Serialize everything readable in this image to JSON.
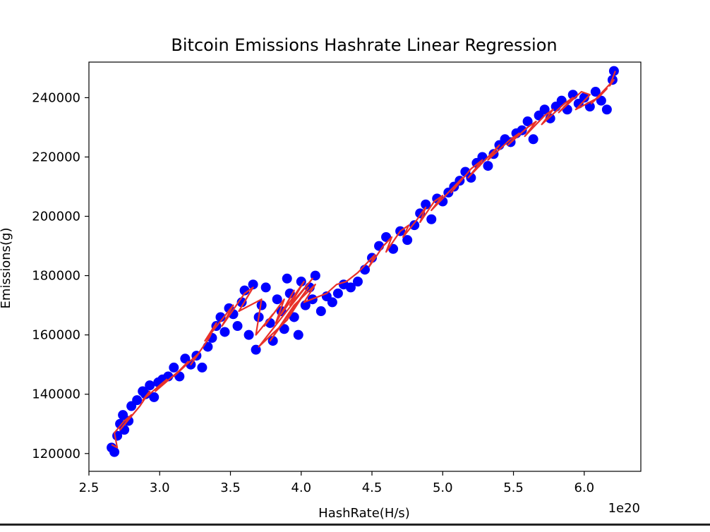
{
  "colors": {
    "points": "#0000ff",
    "line": "#e8312a",
    "axes": "#000000",
    "background": "#ffffff"
  },
  "chart_data": {
    "type": "scatter",
    "title": "Bitcoin Emissions Hashrate Linear Regression",
    "xlabel": "HashRate(H/s)",
    "ylabel": "Emissions(g)",
    "x_offset_label": "1e20",
    "xlim": [
      2.5,
      6.4
    ],
    "ylim": [
      114000,
      252000
    ],
    "x_ticks": [
      2.5,
      3.0,
      3.5,
      4.0,
      4.5,
      5.0,
      5.5,
      6.0
    ],
    "x_tick_labels": [
      "2.5",
      "3.0",
      "3.5",
      "4.0",
      "4.5",
      "5.0",
      "5.5",
      "6.0"
    ],
    "y_ticks": [
      120000,
      140000,
      160000,
      180000,
      200000,
      220000,
      240000
    ],
    "y_tick_labels": [
      "120000",
      "140000",
      "160000",
      "180000",
      "200000",
      "220000",
      "240000"
    ],
    "grid": false,
    "legend": "none",
    "series": [
      {
        "kind": "scatter",
        "color": "#0000ff",
        "x": [
          2.66,
          2.68,
          2.7,
          2.72,
          2.74,
          2.75,
          2.78,
          2.8,
          2.84,
          2.88,
          2.9,
          2.93,
          2.96,
          2.99,
          3.02,
          3.06,
          3.1,
          3.14,
          3.18,
          3.22,
          3.26,
          3.3,
          3.34,
          3.37,
          3.4,
          3.43,
          3.46,
          3.49,
          3.52,
          3.55,
          3.58,
          3.6,
          3.63,
          3.66,
          3.68,
          3.7,
          3.72,
          3.75,
          3.78,
          3.8,
          3.83,
          3.86,
          3.88,
          3.9,
          3.92,
          3.95,
          3.98,
          4.0,
          4.03,
          4.06,
          4.08,
          4.1,
          4.14,
          4.18,
          4.22,
          4.26,
          4.3,
          4.35,
          4.4,
          4.45,
          4.5,
          4.55,
          4.6,
          4.65,
          4.7,
          4.75,
          4.8,
          4.84,
          4.88,
          4.92,
          4.96,
          5.0,
          5.04,
          5.08,
          5.12,
          5.16,
          5.2,
          5.24,
          5.28,
          5.32,
          5.36,
          5.4,
          5.44,
          5.48,
          5.52,
          5.56,
          5.6,
          5.64,
          5.68,
          5.72,
          5.76,
          5.8,
          5.84,
          5.88,
          5.92,
          5.96,
          6.0,
          6.04,
          6.08,
          6.12,
          6.16,
          6.2,
          6.21
        ],
        "y": [
          122000,
          120500,
          126000,
          130000,
          133000,
          128000,
          131000,
          136000,
          138000,
          141000,
          140000,
          143000,
          139000,
          144000,
          145000,
          146000,
          149000,
          146000,
          152000,
          150000,
          153000,
          149000,
          156000,
          159000,
          163000,
          166000,
          161000,
          169000,
          167000,
          163000,
          171000,
          175000,
          160000,
          177000,
          155000,
          166000,
          170000,
          176000,
          164000,
          158000,
          172000,
          168000,
          162000,
          179000,
          174000,
          166000,
          160000,
          178000,
          170000,
          176000,
          172000,
          180000,
          168000,
          173000,
          171000,
          174000,
          177000,
          176000,
          178000,
          182000,
          186000,
          190000,
          193000,
          189000,
          195000,
          192000,
          197000,
          201000,
          204000,
          199000,
          206000,
          205000,
          208000,
          210000,
          212000,
          215000,
          213000,
          218000,
          220000,
          217000,
          221000,
          224000,
          226000,
          225000,
          228000,
          229000,
          232000,
          226000,
          234000,
          236000,
          233000,
          237000,
          239000,
          236000,
          241000,
          238000,
          240000,
          237000,
          242000,
          239000,
          236000,
          246000,
          249000
        ]
      },
      {
        "kind": "line",
        "color": "#e8312a",
        "x": [
          2.66,
          2.7,
          2.68,
          2.75,
          2.8,
          2.72,
          2.86,
          2.93,
          2.88,
          3.0,
          3.05,
          2.97,
          3.14,
          3.2,
          3.1,
          3.28,
          3.22,
          3.35,
          3.4,
          3.32,
          3.47,
          3.52,
          3.44,
          3.6,
          3.66,
          3.56,
          3.72,
          3.68,
          3.8,
          3.74,
          3.88,
          3.82,
          3.95,
          3.86,
          4.02,
          3.92,
          4.08,
          3.98,
          3.7,
          3.9,
          4.05,
          3.78,
          3.95,
          4.1,
          4.02,
          4.18,
          4.25,
          4.32,
          4.4,
          4.46,
          4.52,
          4.48,
          4.58,
          4.64,
          4.6,
          4.7,
          4.76,
          4.72,
          4.82,
          4.88,
          4.84,
          4.94,
          5.0,
          4.92,
          5.08,
          5.14,
          5.06,
          5.2,
          5.28,
          5.18,
          5.34,
          5.4,
          5.32,
          5.48,
          5.54,
          5.46,
          5.6,
          5.66,
          5.58,
          5.72,
          5.78,
          5.7,
          5.86,
          5.92,
          5.82,
          5.98,
          6.04,
          5.94,
          6.1,
          6.16,
          6.05,
          6.21,
          6.18,
          6.22
        ],
        "y": [
          123000,
          122000,
          127000,
          131000,
          133000,
          128000,
          136000,
          141000,
          138000,
          143000,
          145000,
          141000,
          148000,
          151000,
          146000,
          154000,
          150000,
          159000,
          164000,
          158000,
          167000,
          170000,
          163000,
          174000,
          176000,
          168000,
          172000,
          160000,
          167000,
          163000,
          172000,
          164000,
          175000,
          167000,
          178000,
          170000,
          179000,
          173000,
          156000,
          165000,
          176000,
          158000,
          170000,
          177000,
          171000,
          174000,
          177000,
          178000,
          181000,
          184000,
          187000,
          183000,
          190000,
          193000,
          188000,
          195000,
          197000,
          193000,
          199000,
          203000,
          198000,
          205000,
          207000,
          202000,
          210000,
          213000,
          208000,
          216000,
          219000,
          213000,
          221000,
          224000,
          219000,
          226000,
          228000,
          224000,
          230000,
          232000,
          227000,
          234000,
          236000,
          231000,
          238000,
          240000,
          235000,
          242000,
          241000,
          236000,
          240000,
          243000,
          238000,
          246000,
          244000,
          249000
        ]
      }
    ]
  }
}
